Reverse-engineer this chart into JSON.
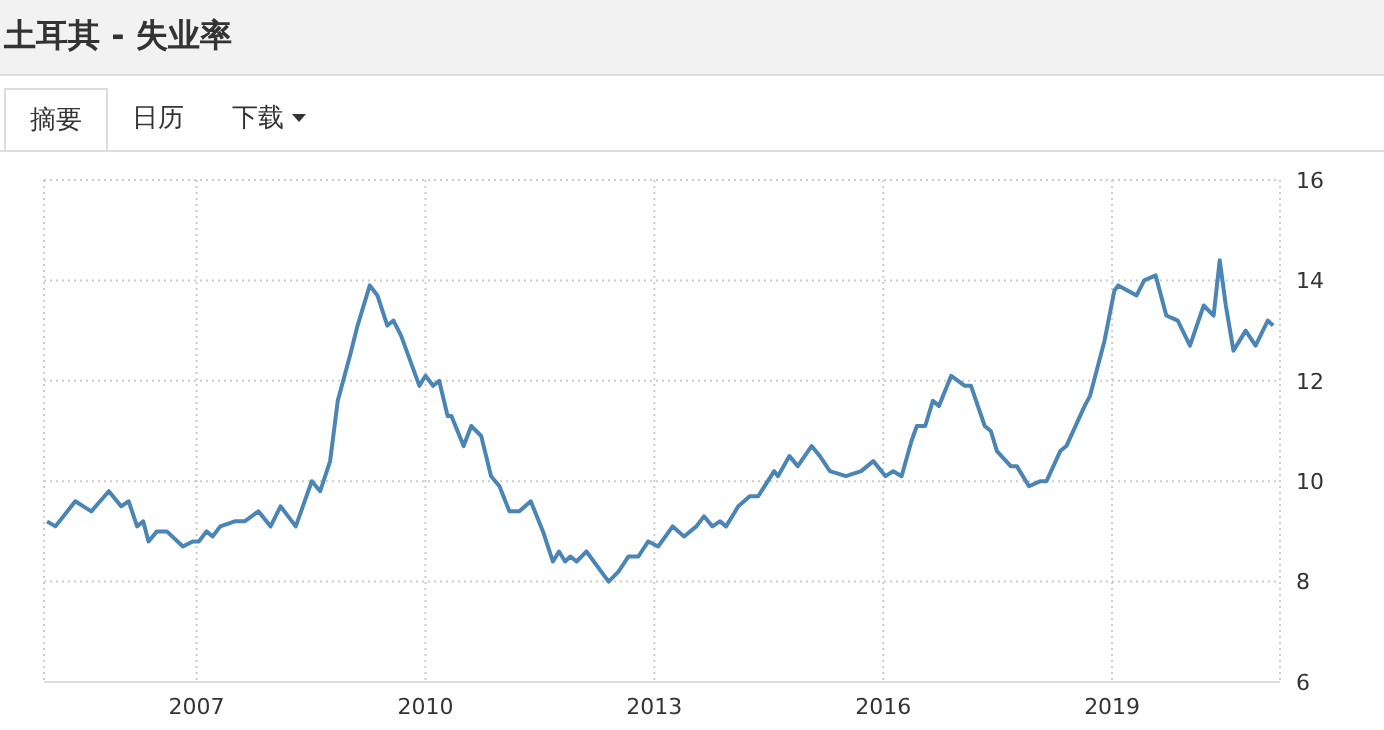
{
  "chart_data": {
    "type": "line",
    "title": "土耳其 - 失业率",
    "annotations": [
      "摘要",
      "日历",
      "下载"
    ],
    "x": [
      2005.04,
      2005.15,
      2005.41,
      2005.62,
      2005.85,
      2006.01,
      2006.11,
      2006.22,
      2006.3,
      2006.37,
      2006.48,
      2006.61,
      2006.82,
      2006.95,
      2007.03,
      2007.13,
      2007.21,
      2007.31,
      2007.5,
      2007.63,
      2007.81,
      2007.97,
      2008.1,
      2008.3,
      2008.51,
      2008.62,
      2008.75,
      2008.85,
      2009.01,
      2009.11,
      2009.27,
      2009.37,
      2009.5,
      2009.58,
      2009.68,
      2009.92,
      2010.0,
      2010.1,
      2010.18,
      2010.29,
      2010.34,
      2010.5,
      2010.6,
      2010.73,
      2010.86,
      2010.97,
      2011.1,
      2011.23,
      2011.38,
      2011.54,
      2011.67,
      2011.75,
      2011.83,
      2011.9,
      2011.98,
      2012.11,
      2012.4,
      2012.53,
      2012.66,
      2012.79,
      2012.92,
      2013.05,
      2013.24,
      2013.39,
      2013.55,
      2013.65,
      2013.76,
      2013.86,
      2013.94,
      2014.1,
      2014.25,
      2014.36,
      2014.57,
      2014.62,
      2014.77,
      2014.88,
      2015.06,
      2015.17,
      2015.3,
      2015.51,
      2015.71,
      2015.87,
      2016.03,
      2016.13,
      2016.24,
      2016.37,
      2016.44,
      2016.55,
      2016.65,
      2016.73,
      2016.89,
      2017.07,
      2017.15,
      2017.33,
      2017.41,
      2017.49,
      2017.67,
      2017.75,
      2017.91,
      2018.06,
      2018.14,
      2018.32,
      2018.4,
      2018.64,
      2018.71,
      2018.9,
      2019.03,
      2019.08,
      2019.32,
      2019.42,
      2019.57,
      2019.71,
      2019.86,
      2020.02,
      2020.2,
      2020.33,
      2020.41,
      2020.49,
      2020.59,
      2020.75,
      2020.88,
      2021.04,
      2021.11
    ],
    "series": [
      {
        "color": "#4a85b5",
        "values": [
          9.2,
          9.1,
          9.6,
          9.4,
          9.8,
          9.5,
          9.6,
          9.1,
          9.2,
          8.8,
          9.0,
          9.0,
          8.7,
          8.8,
          8.8,
          9.0,
          8.9,
          9.1,
          9.2,
          9.2,
          9.4,
          9.1,
          9.5,
          9.1,
          10.0,
          9.8,
          10.4,
          11.6,
          12.5,
          13.1,
          13.9,
          13.7,
          13.1,
          13.2,
          12.9,
          11.9,
          12.1,
          11.9,
          12.0,
          11.3,
          11.3,
          10.7,
          11.1,
          10.9,
          10.1,
          9.9,
          9.4,
          9.4,
          9.6,
          9.0,
          8.4,
          8.6,
          8.4,
          8.5,
          8.4,
          8.6,
          8.0,
          8.2,
          8.5,
          8.5,
          8.8,
          8.7,
          9.1,
          8.9,
          9.1,
          9.3,
          9.1,
          9.2,
          9.1,
          9.5,
          9.7,
          9.7,
          10.2,
          10.1,
          10.5,
          10.3,
          10.7,
          10.5,
          10.2,
          10.1,
          10.2,
          10.4,
          10.1,
          10.2,
          10.1,
          10.8,
          11.1,
          11.1,
          11.6,
          11.5,
          12.1,
          11.9,
          11.9,
          11.1,
          11.0,
          10.6,
          10.3,
          10.3,
          9.9,
          10.0,
          10.0,
          10.6,
          10.7,
          11.5,
          11.7,
          12.8,
          13.8,
          13.9,
          13.7,
          14.0,
          14.1,
          13.3,
          13.2,
          12.7,
          13.5,
          13.3,
          14.4,
          13.5,
          12.6,
          13.0,
          12.7,
          13.2,
          13.1
        ]
      }
    ],
    "xlim": [
      2005,
      2021.2
    ],
    "xticks": [
      2007,
      2010,
      2013,
      2016,
      2019
    ],
    "ylim": [
      6,
      16
    ],
    "yticks": [
      6,
      8,
      10,
      12,
      14,
      16
    ],
    "grid": true,
    "legend": false,
    "marker": "none",
    "line_style": "solid"
  }
}
